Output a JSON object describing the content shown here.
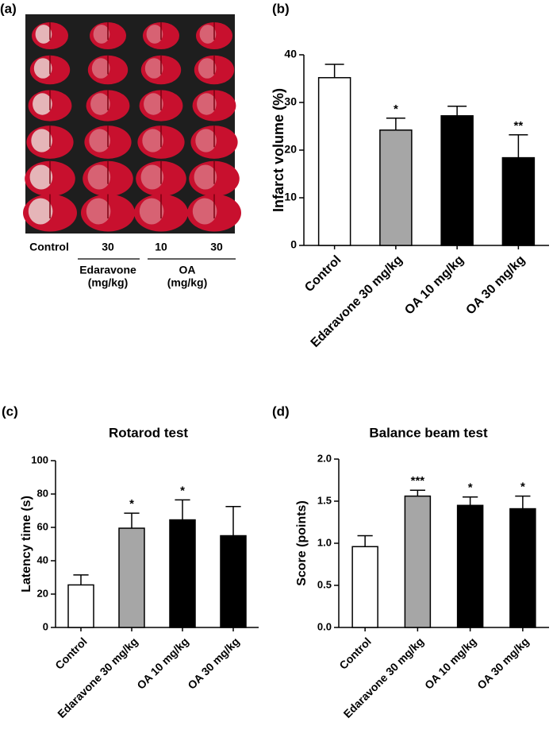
{
  "photo": {
    "panel_label": "(a)",
    "columns": [
      "Control",
      "30",
      "10",
      "30"
    ],
    "groups": [
      [
        "Edaravone",
        "(mg/kg)"
      ],
      [
        "OA",
        "(mg/kg)"
      ]
    ]
  },
  "chart_data": [
    {
      "type": "bar",
      "panel_label": "(b)",
      "ylabel": "Infarct volume (%)",
      "categories": [
        "Control",
        "Edaravone 30 mg/kg",
        "OA 10 mg/kg",
        "OA 30 mg/kg"
      ],
      "values": [
        35.2,
        24.2,
        27.2,
        18.4
      ],
      "errors": [
        2.8,
        2.5,
        2.0,
        4.8
      ],
      "colors": [
        "#ffffff",
        "#a6a6a6",
        "#000000",
        "#000000"
      ],
      "significance": [
        null,
        "*",
        null,
        "**"
      ],
      "ylim": [
        0,
        40
      ],
      "yticks": [
        0,
        10,
        20,
        30,
        40
      ]
    },
    {
      "type": "bar",
      "panel_label": "(c)",
      "title": "Rotarod test",
      "ylabel": "Latency time (s)",
      "categories": [
        "Control",
        "Edaravone 30 mg/kg",
        "OA 10 mg/kg",
        "OA 30 mg/kg"
      ],
      "values": [
        25.5,
        59.5,
        64.5,
        55
      ],
      "errors": [
        6,
        9,
        12,
        17.5
      ],
      "colors": [
        "#ffffff",
        "#a6a6a6",
        "#000000",
        "#000000"
      ],
      "significance": [
        null,
        "*",
        "*",
        null
      ],
      "ylim": [
        0,
        100
      ],
      "yticks": [
        0,
        20,
        40,
        60,
        80,
        100
      ]
    },
    {
      "type": "bar",
      "panel_label": "(d)",
      "title": "Balance beam test",
      "ylabel": "Score (points)",
      "categories": [
        "Control",
        "Edaravone 30 mg/kg",
        "OA 10 mg/kg",
        "OA 30 mg/kg"
      ],
      "values": [
        0.96,
        1.56,
        1.45,
        1.41
      ],
      "errors": [
        0.13,
        0.07,
        0.1,
        0.15
      ],
      "colors": [
        "#ffffff",
        "#a6a6a6",
        "#000000",
        "#000000"
      ],
      "significance": [
        null,
        "***",
        "*",
        "*"
      ],
      "ylim": [
        0,
        2
      ],
      "yticks": [
        {
          "value": 0,
          "label": "0.0"
        },
        0.5,
        {
          "value": 1,
          "label": "1.0"
        },
        1.5,
        {
          "value": 2,
          "label": "2.0"
        }
      ]
    }
  ]
}
